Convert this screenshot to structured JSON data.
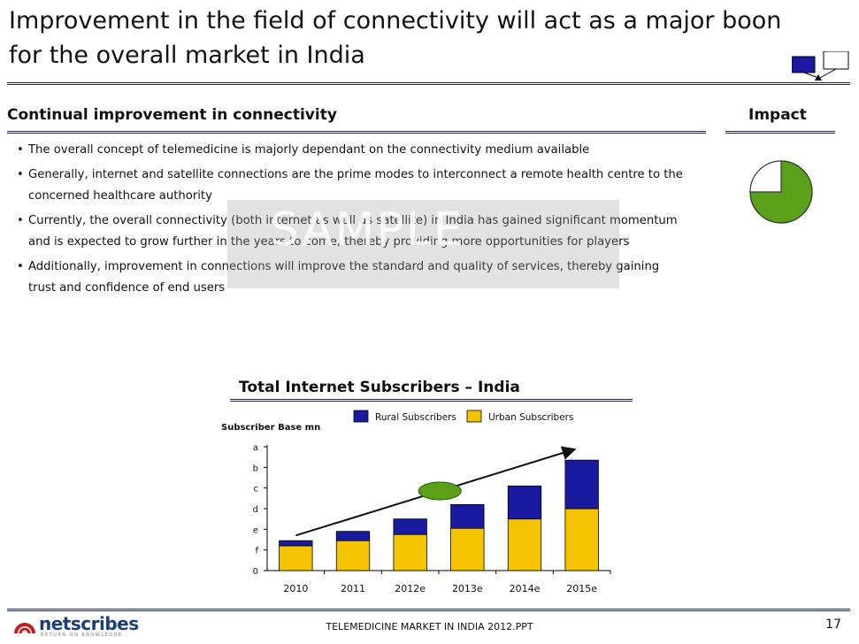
{
  "slide": {
    "title": "Improvement in the field of connectivity will act as a major boon for the overall market in India",
    "section_heading": "Continual improvement in connectivity",
    "impact_heading": "Impact",
    "bullets": [
      "The overall concept of telemedicine is majorly dependant on the connectivity medium available",
      "Generally, internet and satellite connections are the prime modes to interconnect a remote health centre to the concerned healthcare authority",
      "Currently, the overall connectivity (both internet as well as satellite) in India has gained significant momentum and is expected to grow further in the years to come, thereby providing more opportunities for players",
      "Additionally, improvement in connections will improve the standard and quality of services, thereby gaining trust and confidence of end users"
    ],
    "watermark": "SAMPLE"
  },
  "impact_pie": {
    "filled_fraction": 0.75,
    "fill_color": "#5aa018",
    "empty_color": "#ffffff"
  },
  "chart_data": {
    "type": "bar",
    "stacked": true,
    "title": "Total Internet Subscribers – India",
    "ylabel": "Subscriber Base mn",
    "xlabel": "",
    "categories": [
      "2010",
      "2011",
      "2012e",
      "2013e",
      "2014e",
      "2015e"
    ],
    "yticks": [
      "0",
      "f",
      "e",
      "d",
      "c",
      "b",
      "a"
    ],
    "ylim": [
      0,
      6
    ],
    "series": [
      {
        "name": "Urban Subscribers",
        "color": "#f5c400",
        "values": [
          1.2,
          1.45,
          1.75,
          2.05,
          2.5,
          3.0
        ]
      },
      {
        "name": "Rural Subscribers",
        "color": "#1a1aa0",
        "values": [
          0.25,
          0.45,
          0.75,
          1.15,
          1.6,
          2.35
        ]
      }
    ],
    "legend_position": "top-right",
    "grid": false,
    "annotation": {
      "type": "trend-arrow",
      "start": {
        "x": "2010",
        "y": 1.7
      },
      "end": {
        "x": "2015e",
        "y": 5.85
      }
    },
    "annotation_oval_color": "#5aa018"
  },
  "footer": {
    "logo_text": "netscribes",
    "logo_tagline": "RETURN ON KNOWLEDGE",
    "center_text": "TELEMEDICINE MARKET IN INDIA 2012.PPT",
    "page_number": "17"
  },
  "colors": {
    "accent_rule": "#1a2470"
  }
}
